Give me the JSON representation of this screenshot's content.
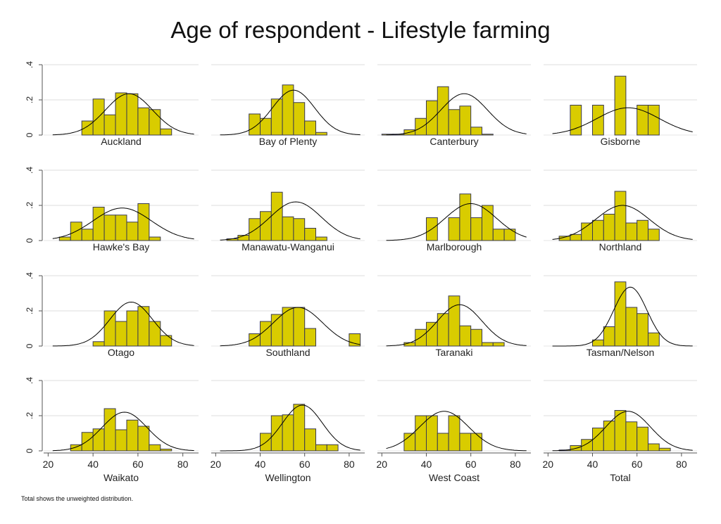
{
  "chart_data": {
    "type": "histogram",
    "title": "Age of respondent - Lifestyle farming",
    "footnote": "Total shows the unweighted distribution.",
    "y_ticks": [
      0,
      0.2,
      0.4
    ],
    "y_tick_labels": [
      "0",
      ".2",
      ".4"
    ],
    "x_ticks": [
      20,
      40,
      60,
      80
    ],
    "x_tick_labels": [
      "20",
      "40",
      "60",
      "80"
    ],
    "xlim": [
      18,
      87
    ],
    "ylim": [
      0,
      0.45
    ],
    "grid": true,
    "overlay": "normal density curve",
    "colors": {
      "bar_fill": "#d9cc00",
      "bar_stroke": "#3a3a50",
      "curve": "#000000",
      "grid": "#dcdcdc",
      "axis": "#555555"
    },
    "panels": [
      {
        "label": "Auckland",
        "bars": [
          [
            35,
            0.08
          ],
          [
            40,
            0.205
          ],
          [
            45,
            0.115
          ],
          [
            50,
            0.24
          ],
          [
            55,
            0.235
          ],
          [
            60,
            0.155
          ],
          [
            65,
            0.145
          ],
          [
            70,
            0.035
          ]
        ],
        "curve": {
          "mean": 56,
          "sd": 10.5,
          "peak": 0.235
        }
      },
      {
        "label": "Bay of Plenty",
        "bars": [
          [
            35,
            0.12
          ],
          [
            40,
            0.095
          ],
          [
            45,
            0.205
          ],
          [
            50,
            0.285
          ],
          [
            55,
            0.185
          ],
          [
            60,
            0.08
          ],
          [
            65,
            0.015
          ]
        ],
        "curve": {
          "mean": 55,
          "sd": 9.5,
          "peak": 0.255
        }
      },
      {
        "label": "Canterbury",
        "bars": [
          [
            20,
            0.005
          ],
          [
            25,
            0.005
          ],
          [
            30,
            0.03
          ],
          [
            35,
            0.095
          ],
          [
            40,
            0.195
          ],
          [
            45,
            0.275
          ],
          [
            50,
            0.145
          ],
          [
            55,
            0.165
          ],
          [
            60,
            0.045
          ],
          [
            65,
            0.005
          ]
        ],
        "curve": {
          "mean": 57,
          "sd": 10.5,
          "peak": 0.235
        }
      },
      {
        "label": "Gisborne",
        "bars": [
          [
            30,
            0.17
          ],
          [
            40,
            0.17
          ],
          [
            50,
            0.335
          ],
          [
            60,
            0.17
          ],
          [
            65,
            0.17
          ]
        ],
        "curve": {
          "mean": 56,
          "sd": 14,
          "peak": 0.155
        }
      },
      {
        "label": "Hawke's Bay",
        "bars": [
          [
            25,
            0.02
          ],
          [
            30,
            0.105
          ],
          [
            35,
            0.065
          ],
          [
            40,
            0.19
          ],
          [
            45,
            0.145
          ],
          [
            50,
            0.145
          ],
          [
            55,
            0.105
          ],
          [
            60,
            0.21
          ],
          [
            65,
            0.02
          ]
        ],
        "curve": {
          "mean": 53,
          "sd": 13,
          "peak": 0.185
        }
      },
      {
        "label": "Manawatu-Wanganui",
        "bars": [
          [
            25,
            0.01
          ],
          [
            30,
            0.03
          ],
          [
            35,
            0.125
          ],
          [
            40,
            0.165
          ],
          [
            45,
            0.275
          ],
          [
            50,
            0.135
          ],
          [
            55,
            0.125
          ],
          [
            60,
            0.07
          ],
          [
            65,
            0.02
          ]
        ],
        "curve": {
          "mean": 56,
          "sd": 11.5,
          "peak": 0.22
        }
      },
      {
        "label": "Marlborough",
        "bars": [
          [
            40,
            0.13
          ],
          [
            50,
            0.13
          ],
          [
            55,
            0.265
          ],
          [
            60,
            0.13
          ],
          [
            65,
            0.2
          ],
          [
            70,
            0.065
          ],
          [
            75,
            0.065
          ]
        ],
        "curve": {
          "mean": 60,
          "sd": 11.5,
          "peak": 0.21
        }
      },
      {
        "label": "Northland",
        "bars": [
          [
            25,
            0.025
          ],
          [
            30,
            0.035
          ],
          [
            35,
            0.1
          ],
          [
            40,
            0.115
          ],
          [
            45,
            0.15
          ],
          [
            50,
            0.28
          ],
          [
            55,
            0.1
          ],
          [
            60,
            0.115
          ],
          [
            65,
            0.065
          ]
        ],
        "curve": {
          "mean": 53.5,
          "sd": 12,
          "peak": 0.2
        }
      },
      {
        "label": "Otago",
        "bars": [
          [
            40,
            0.025
          ],
          [
            45,
            0.2
          ],
          [
            50,
            0.14
          ],
          [
            55,
            0.2
          ],
          [
            60,
            0.225
          ],
          [
            65,
            0.14
          ],
          [
            70,
            0.06
          ]
        ],
        "curve": {
          "mean": 57,
          "sd": 9.5,
          "peak": 0.25
        }
      },
      {
        "label": "Southland",
        "bars": [
          [
            35,
            0.07
          ],
          [
            40,
            0.14
          ],
          [
            45,
            0.18
          ],
          [
            50,
            0.22
          ],
          [
            55,
            0.22
          ],
          [
            60,
            0.1
          ],
          [
            80,
            0.07
          ]
        ],
        "curve": {
          "mean": 57,
          "sd": 11,
          "peak": 0.22
        }
      },
      {
        "label": "Taranaki",
        "bars": [
          [
            30,
            0.02
          ],
          [
            35,
            0.095
          ],
          [
            40,
            0.135
          ],
          [
            45,
            0.185
          ],
          [
            50,
            0.285
          ],
          [
            55,
            0.115
          ],
          [
            60,
            0.095
          ],
          [
            65,
            0.02
          ],
          [
            70,
            0.02
          ]
        ],
        "curve": {
          "mean": 55,
          "sd": 10,
          "peak": 0.235
        }
      },
      {
        "label": "Tasman/Nelson",
        "bars": [
          [
            40,
            0.035
          ],
          [
            45,
            0.11
          ],
          [
            50,
            0.365
          ],
          [
            55,
            0.22
          ],
          [
            60,
            0.185
          ],
          [
            65,
            0.075
          ]
        ],
        "curve": {
          "mean": 57,
          "sd": 7.5,
          "peak": 0.335
        }
      },
      {
        "label": "Waikato",
        "bars": [
          [
            30,
            0.035
          ],
          [
            35,
            0.105
          ],
          [
            40,
            0.125
          ],
          [
            45,
            0.24
          ],
          [
            50,
            0.12
          ],
          [
            55,
            0.175
          ],
          [
            60,
            0.14
          ],
          [
            65,
            0.035
          ],
          [
            70,
            0.01
          ]
        ],
        "curve": {
          "mean": 54,
          "sd": 10,
          "peak": 0.22
        }
      },
      {
        "label": "Wellington",
        "bars": [
          [
            40,
            0.1
          ],
          [
            45,
            0.2
          ],
          [
            50,
            0.205
          ],
          [
            55,
            0.265
          ],
          [
            60,
            0.125
          ],
          [
            65,
            0.035
          ],
          [
            70,
            0.035
          ]
        ],
        "curve": {
          "mean": 59,
          "sd": 9,
          "peak": 0.26
        }
      },
      {
        "label": "West Coast",
        "bars": [
          [
            30,
            0.1
          ],
          [
            35,
            0.2
          ],
          [
            40,
            0.2
          ],
          [
            45,
            0.1
          ],
          [
            50,
            0.2
          ],
          [
            55,
            0.1
          ],
          [
            60,
            0.1
          ]
        ],
        "curve": {
          "mean": 48,
          "sd": 11,
          "peak": 0.225
        }
      },
      {
        "label": "Total",
        "bars": [
          [
            25,
            0.005
          ],
          [
            30,
            0.03
          ],
          [
            35,
            0.065
          ],
          [
            40,
            0.13
          ],
          [
            45,
            0.17
          ],
          [
            50,
            0.23
          ],
          [
            55,
            0.165
          ],
          [
            60,
            0.135
          ],
          [
            65,
            0.04
          ],
          [
            70,
            0.015
          ]
        ],
        "curve": {
          "mean": 56,
          "sd": 10,
          "peak": 0.225
        }
      }
    ]
  }
}
